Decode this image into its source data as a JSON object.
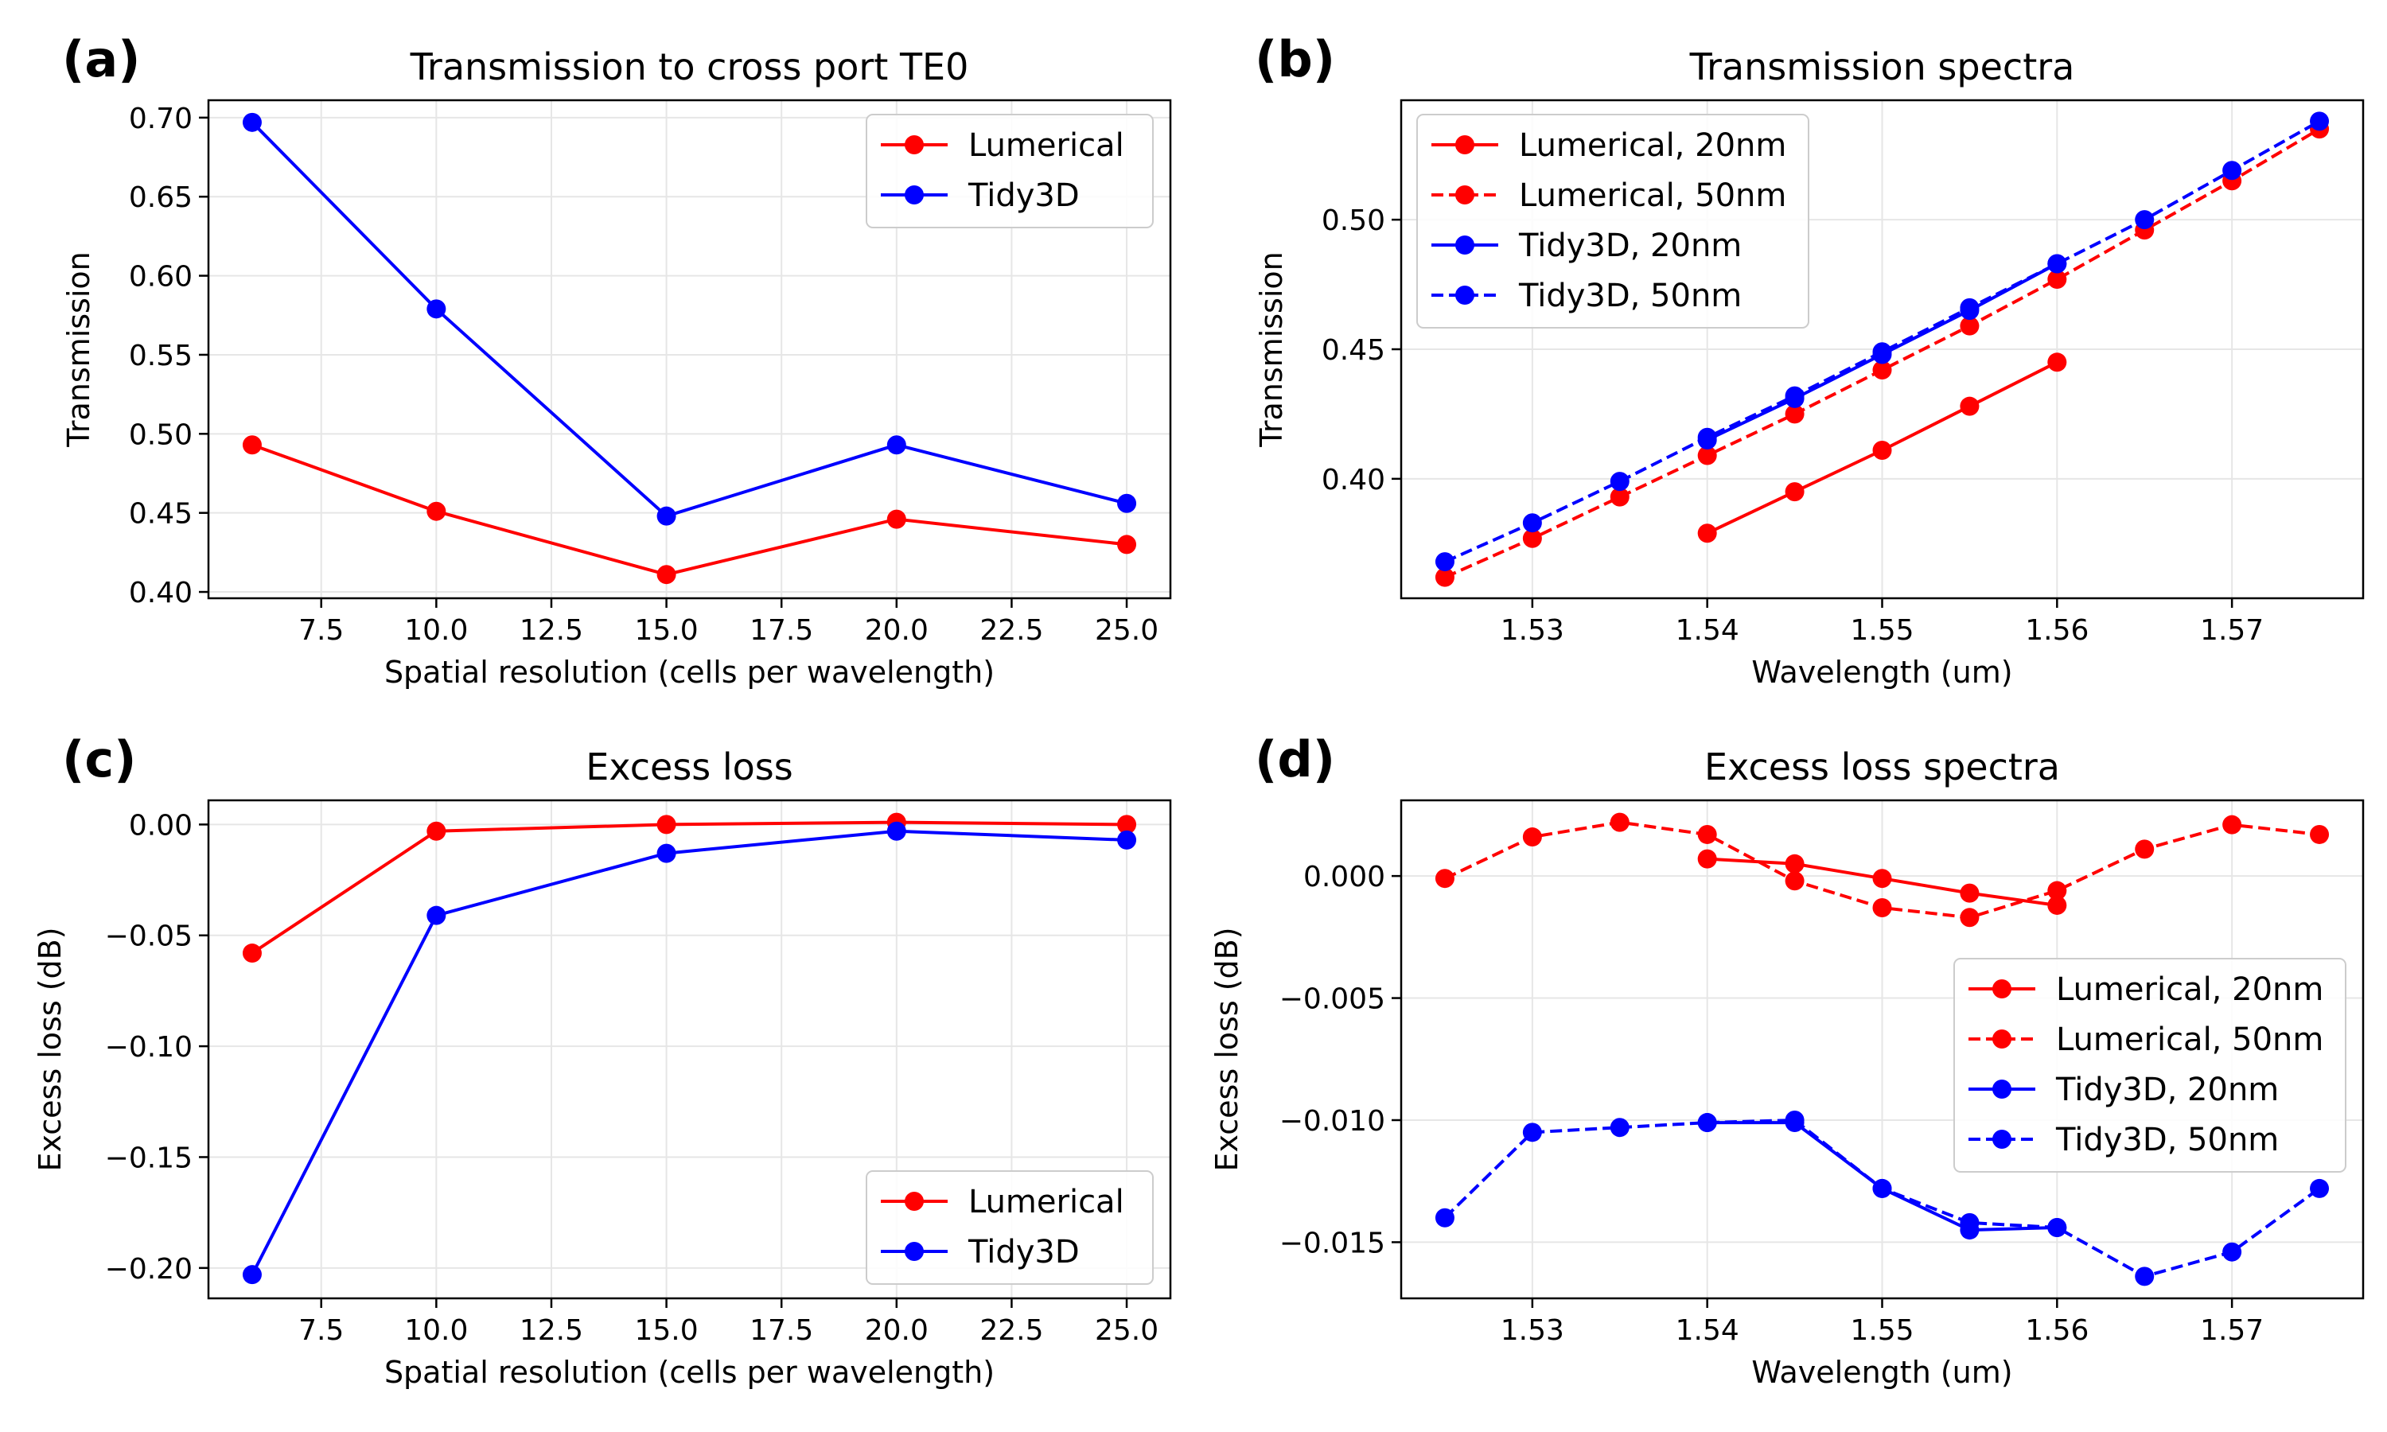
{
  "colors": {
    "lumerical": "#ff0000",
    "tidy3d": "#0000ff",
    "grid": "#e6e6e6",
    "axis": "#000000"
  },
  "chart_data": [
    {
      "panel": "(a)",
      "type": "line",
      "title": "Transmission to cross port TE0",
      "xlabel": "Spatial resolution (cells per wavelength)",
      "ylabel": "Transmission",
      "xlim": [
        5.05,
        25.95
      ],
      "ylim": [
        0.396,
        0.711
      ],
      "xticks": [
        7.5,
        10.0,
        12.5,
        15.0,
        17.5,
        20.0,
        22.5,
        25.0
      ],
      "xtick_labels": [
        "7.5",
        "10.0",
        "12.5",
        "15.0",
        "17.5",
        "20.0",
        "22.5",
        "25.0"
      ],
      "yticks": [
        0.4,
        0.45,
        0.5,
        0.55,
        0.6,
        0.65,
        0.7
      ],
      "ytick_labels": [
        "0.40",
        "0.45",
        "0.50",
        "0.55",
        "0.60",
        "0.65",
        "0.70"
      ],
      "legend_position": "upper-right",
      "series": [
        {
          "name": "Lumerical",
          "color": "#ff0000",
          "dashed": false,
          "x": [
            6,
            10,
            15,
            20,
            25
          ],
          "y": [
            0.493,
            0.451,
            0.411,
            0.446,
            0.43
          ]
        },
        {
          "name": "Tidy3D",
          "color": "#0000ff",
          "dashed": false,
          "x": [
            6,
            10,
            15,
            20,
            25
          ],
          "y": [
            0.697,
            0.579,
            0.448,
            0.493,
            0.456
          ]
        }
      ]
    },
    {
      "panel": "(b)",
      "type": "line",
      "title": "Transmission spectra",
      "xlabel": "Wavelength (um)",
      "ylabel": "Transmission",
      "xlim": [
        1.5225,
        1.5775
      ],
      "ylim": [
        0.3539,
        0.5461
      ],
      "xticks": [
        1.53,
        1.54,
        1.55,
        1.56,
        1.57
      ],
      "xtick_labels": [
        "1.53",
        "1.54",
        "1.55",
        "1.56",
        "1.57"
      ],
      "yticks": [
        0.4,
        0.45,
        0.5
      ],
      "ytick_labels": [
        "0.40",
        "0.45",
        "0.50"
      ],
      "legend_position": "upper-left",
      "series": [
        {
          "name": "Lumerical, 20nm",
          "color": "#ff0000",
          "dashed": false,
          "x": [
            1.54,
            1.545,
            1.55,
            1.555,
            1.56
          ],
          "y": [
            0.379,
            0.395,
            0.411,
            0.428,
            0.445
          ]
        },
        {
          "name": "Lumerical, 50nm",
          "color": "#ff0000",
          "dashed": true,
          "x": [
            1.525,
            1.53,
            1.535,
            1.54,
            1.545,
            1.55,
            1.555,
            1.56,
            1.565,
            1.57,
            1.575
          ],
          "y": [
            0.362,
            0.377,
            0.393,
            0.409,
            0.425,
            0.442,
            0.459,
            0.477,
            0.496,
            0.515,
            0.535
          ]
        },
        {
          "name": "Tidy3D, 20nm",
          "color": "#0000ff",
          "dashed": false,
          "x": [
            1.54,
            1.545,
            1.55,
            1.555,
            1.56
          ],
          "y": [
            0.415,
            0.431,
            0.448,
            0.465,
            0.483
          ]
        },
        {
          "name": "Tidy3D, 50nm",
          "color": "#0000ff",
          "dashed": true,
          "x": [
            1.525,
            1.53,
            1.535,
            1.54,
            1.545,
            1.55,
            1.555,
            1.56,
            1.565,
            1.57,
            1.575
          ],
          "y": [
            0.368,
            0.383,
            0.399,
            0.416,
            0.432,
            0.449,
            0.466,
            0.483,
            0.5,
            0.519,
            0.538
          ]
        }
      ]
    },
    {
      "panel": "(c)",
      "type": "line",
      "title": "Excess loss",
      "xlabel": "Spatial resolution (cells per wavelength)",
      "ylabel": "Excess loss (dB)",
      "xlim": [
        5.05,
        25.95
      ],
      "ylim": [
        -0.2137,
        0.0109
      ],
      "xticks": [
        7.5,
        10.0,
        12.5,
        15.0,
        17.5,
        20.0,
        22.5,
        25.0
      ],
      "xtick_labels": [
        "7.5",
        "10.0",
        "12.5",
        "15.0",
        "17.5",
        "20.0",
        "22.5",
        "25.0"
      ],
      "yticks": [
        -0.2,
        -0.15,
        -0.1,
        -0.05,
        0.0
      ],
      "ytick_labels": [
        "−0.20",
        "−0.15",
        "−0.10",
        "−0.05",
        "0.00"
      ],
      "legend_position": "lower-right",
      "series": [
        {
          "name": "Lumerical",
          "color": "#ff0000",
          "dashed": false,
          "x": [
            6,
            10,
            15,
            20,
            25
          ],
          "y": [
            -0.058,
            -0.003,
            0.0,
            0.001,
            0.0
          ]
        },
        {
          "name": "Tidy3D",
          "color": "#0000ff",
          "dashed": false,
          "x": [
            6,
            10,
            15,
            20,
            25
          ],
          "y": [
            -0.203,
            -0.041,
            -0.013,
            -0.003,
            -0.007
          ]
        }
      ]
    },
    {
      "panel": "(d)",
      "type": "line",
      "title": "Excess loss spectra",
      "xlabel": "Wavelength (um)",
      "ylabel": "Excess loss (dB)",
      "xlim": [
        1.5225,
        1.5775
      ],
      "ylim": [
        -0.0173,
        0.0031
      ],
      "xticks": [
        1.53,
        1.54,
        1.55,
        1.56,
        1.57
      ],
      "xtick_labels": [
        "1.53",
        "1.54",
        "1.55",
        "1.56",
        "1.57"
      ],
      "yticks": [
        -0.015,
        -0.01,
        -0.005,
        0.0
      ],
      "ytick_labels": [
        "−0.015",
        "−0.010",
        "−0.005",
        "0.000"
      ],
      "legend_position": "center-right",
      "series": [
        {
          "name": "Lumerical, 20nm",
          "color": "#ff0000",
          "dashed": false,
          "x": [
            1.54,
            1.545,
            1.55,
            1.555,
            1.56
          ],
          "y": [
            0.0007,
            0.0005,
            -0.0001,
            -0.0007,
            -0.0012
          ]
        },
        {
          "name": "Lumerical, 50nm",
          "color": "#ff0000",
          "dashed": true,
          "x": [
            1.525,
            1.53,
            1.535,
            1.54,
            1.545,
            1.55,
            1.555,
            1.56,
            1.565,
            1.57,
            1.575
          ],
          "y": [
            -0.0001,
            0.0016,
            0.0022,
            0.0017,
            -0.0002,
            -0.0013,
            -0.0017,
            -0.0006,
            0.0011,
            0.0021,
            0.0017
          ]
        },
        {
          "name": "Tidy3D, 20nm",
          "color": "#0000ff",
          "dashed": false,
          "x": [
            1.54,
            1.545,
            1.55,
            1.555,
            1.56
          ],
          "y": [
            -0.0101,
            -0.0101,
            -0.0128,
            -0.0145,
            -0.0144
          ]
        },
        {
          "name": "Tidy3D, 50nm",
          "color": "#0000ff",
          "dashed": true,
          "x": [
            1.525,
            1.53,
            1.535,
            1.54,
            1.545,
            1.55,
            1.555,
            1.56,
            1.565,
            1.57,
            1.575
          ],
          "y": [
            -0.014,
            -0.0105,
            -0.0103,
            -0.0101,
            -0.01,
            -0.0128,
            -0.0142,
            -0.0144,
            -0.0164,
            -0.0154,
            -0.0128
          ]
        }
      ]
    }
  ]
}
